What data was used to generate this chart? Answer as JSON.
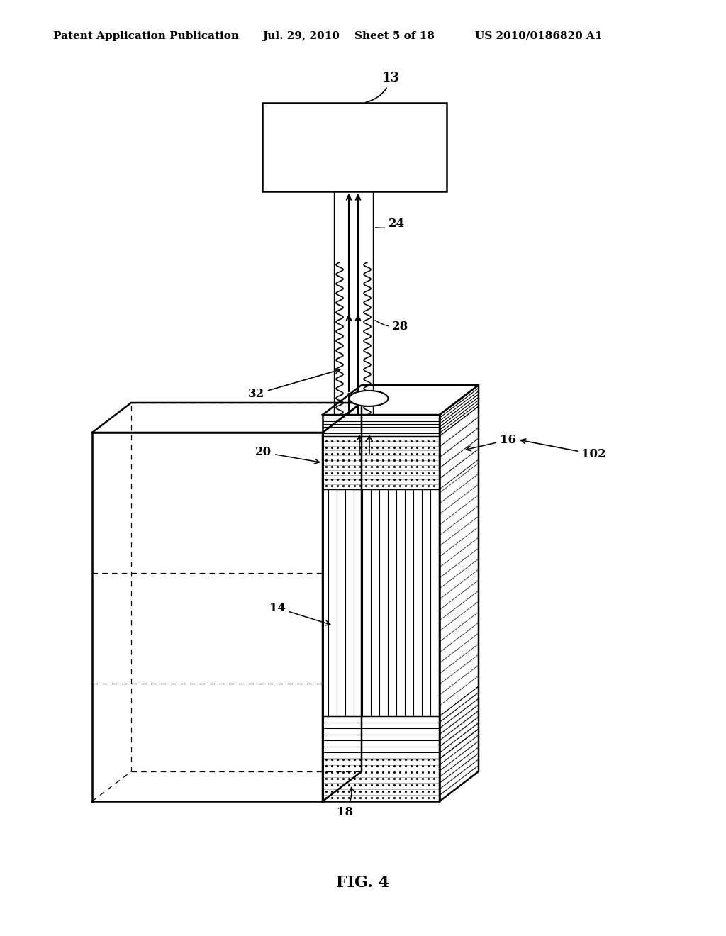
{
  "background_color": "#ffffff",
  "header_text": "Patent Application Publication",
  "header_date": "Jul. 29, 2010",
  "header_sheet": "Sheet 5 of 18",
  "header_patent": "US 2010/0186820 A1",
  "figure_label": "FIG. 4"
}
